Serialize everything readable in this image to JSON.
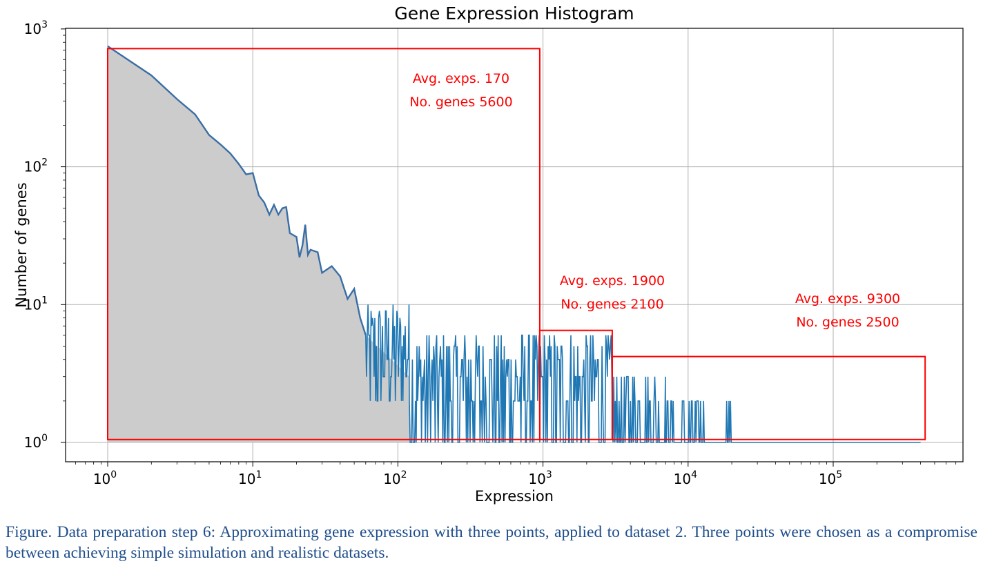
{
  "chart_data": {
    "type": "area",
    "title": "Gene Expression Histogram",
    "xlabel": "Expression",
    "ylabel": "Number of genes",
    "xscale": "log",
    "yscale": "log",
    "xlim": [
      0.5,
      1000000
    ],
    "ylim": [
      0.9,
      1050
    ],
    "grid": true,
    "x_ticks": [
      {
        "base": "10",
        "exp": "0"
      },
      {
        "base": "10",
        "exp": "1"
      },
      {
        "base": "10",
        "exp": "2"
      },
      {
        "base": "10",
        "exp": "3"
      },
      {
        "base": "10",
        "exp": "4"
      },
      {
        "base": "10",
        "exp": "5"
      }
    ],
    "y_ticks": [
      {
        "base": "10",
        "exp": "0"
      },
      {
        "base": "10",
        "exp": "1"
      },
      {
        "base": "10",
        "exp": "2"
      },
      {
        "base": "10",
        "exp": "3"
      }
    ],
    "line_color": "#3a6ea5",
    "fill_color": "#cccccc",
    "spike_color": "#1f77b4",
    "series": [
      {
        "x": [
          1,
          2,
          3,
          4,
          5,
          6,
          7,
          8,
          9,
          10,
          11,
          12,
          13,
          14,
          15,
          16,
          17,
          18,
          20,
          21,
          22,
          23,
          24,
          25,
          28,
          30,
          35,
          40,
          45,
          50,
          55,
          60
        ],
        "y": [
          750,
          460,
          310,
          240,
          170,
          145,
          125,
          105,
          88,
          90,
          62,
          55,
          45,
          53,
          45,
          50,
          51,
          33,
          31,
          22,
          27,
          38,
          23,
          25,
          24,
          17,
          19,
          16,
          11,
          13,
          8,
          6
        ]
      }
    ],
    "spikes": [
      {
        "x_range": [
          60,
          120
        ],
        "y_range": [
          1.5,
          10
        ]
      },
      {
        "x_range": [
          120,
          950
        ],
        "y_range": [
          1,
          6
        ]
      },
      {
        "x_range": [
          950,
          3000
        ],
        "y_range": [
          1,
          6
        ]
      },
      {
        "x_range": [
          3000,
          7000
        ],
        "y_range": [
          1,
          3
        ]
      },
      {
        "x_range": [
          7000,
          13000
        ],
        "y_range": [
          1,
          2
        ]
      },
      {
        "x_range": [
          18000,
          20000
        ],
        "y_range": [
          1,
          2
        ]
      }
    ],
    "baseline_x_end": 400000,
    "regions": [
      {
        "x_range": [
          1,
          950
        ],
        "y_range": [
          1.05,
          720
        ],
        "label_lines": [
          "Avg. exps. 170",
          "No. genes 5600"
        ]
      },
      {
        "x_range": [
          950,
          3000
        ],
        "y_range": [
          1.05,
          6.5
        ],
        "label_lines": [
          "Avg. exps. 1900",
          "No. genes 2100"
        ]
      },
      {
        "x_range": [
          3000,
          430000
        ],
        "y_range": [
          1.05,
          4.2
        ],
        "label_lines": [
          "Avg. exps. 9300",
          "No. genes 2500"
        ]
      }
    ],
    "region_color": "#ff0000"
  },
  "caption": "Figure. Data preparation step 6: Approximating gene expression with three points, applied to dataset 2. Three points were chosen as a compromise between achieving simple simulation and realistic datasets."
}
